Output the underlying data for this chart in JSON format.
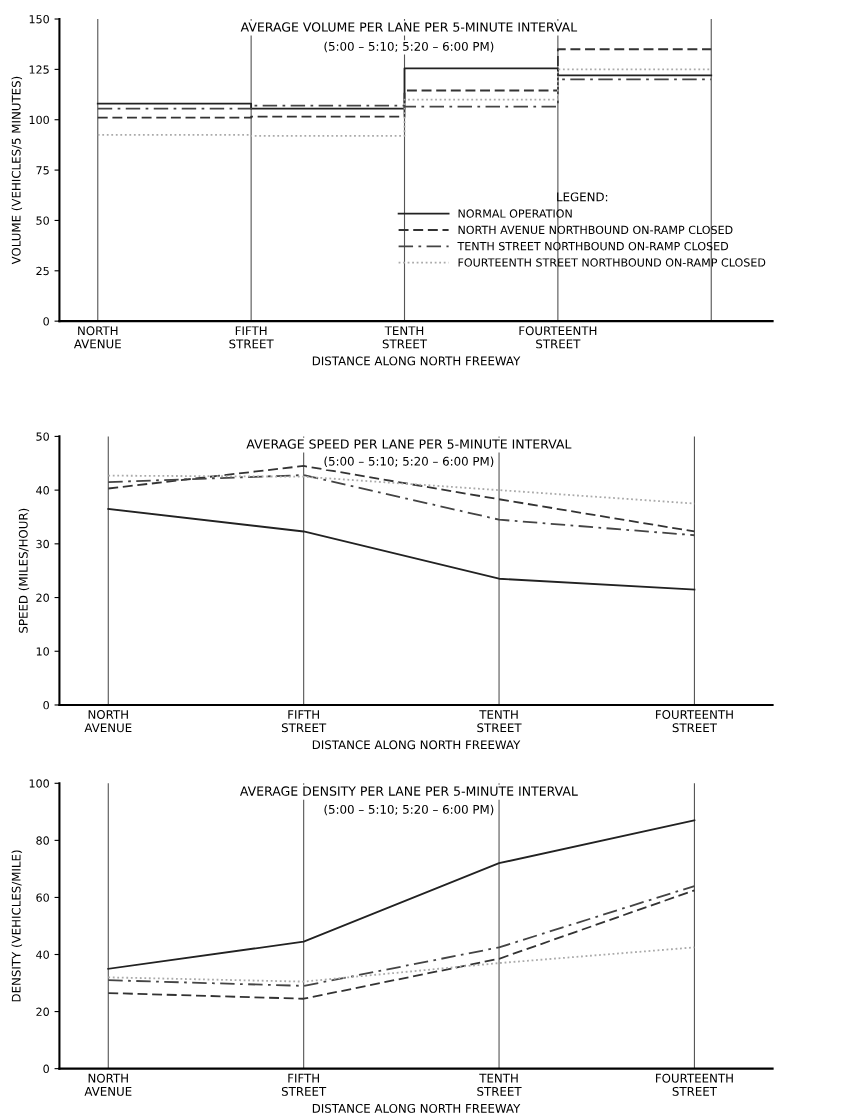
{
  "chart_data": [
    {
      "type": "step",
      "title": "AVERAGE VOLUME PER LANE PER 5-MINUTE INTERVAL",
      "subtitle": "(5:00 – 5:10; 5:20 – 6:00 PM)",
      "xlabel": "DISTANCE ALONG NORTH FREEWAY",
      "ylabel": "VOLUME (VEHICLES/5 MINUTES)",
      "legend_title": "LEGEND:",
      "legend": "center right",
      "categories": [
        "NORTH\nAVENUE",
        "FIFTH\nSTREET",
        "TENTH\nSTREET",
        "FOURTEENTH\nSTREET",
        null
      ],
      "ylim": [
        0,
        150
      ],
      "yticks": [
        0,
        25,
        50,
        75,
        100,
        125,
        150
      ],
      "grid": "x",
      "series": [
        {
          "name": "NORMAL OPERATION",
          "color": "#222222",
          "line_style": "solid",
          "values": [
            108,
            105.5,
            125.5,
            122,
            122
          ]
        },
        {
          "name": "NORTH AVENUE NORTHBOUND ON-RAMP CLOSED",
          "color": "#333333",
          "line_style": "dashed",
          "values": [
            101,
            101.5,
            114.5,
            135,
            135
          ]
        },
        {
          "name": "TENTH STREET NORTHBOUND ON-RAMP CLOSED",
          "color": "#444444",
          "line_style": "dashdot",
          "values": [
            105.5,
            107,
            106.5,
            120,
            120
          ]
        },
        {
          "name": "FOURTEENTH STREET NORTHBOUND ON-RAMP CLOSED",
          "color": "#aaaaaa",
          "line_style": "dotted",
          "values": [
            92.5,
            92,
            110,
            125,
            125
          ]
        }
      ]
    },
    {
      "type": "line",
      "title": "AVERAGE SPEED PER LANE PER 5-MINUTE INTERVAL",
      "subtitle": "(5:00 – 5:10; 5:20 – 6:00 PM)",
      "xlabel": "DISTANCE ALONG NORTH FREEWAY",
      "ylabel": "SPEED (MILES/HOUR)",
      "categories": [
        "NORTH\nAVENUE",
        "FIFTH\nSTREET",
        "TENTH\nSTREET",
        "FOURTEENTH\nSTREET"
      ],
      "ylim": [
        0,
        50
      ],
      "yticks": [
        0,
        10,
        20,
        30,
        40,
        50
      ],
      "grid": "x",
      "series": [
        {
          "color": "#222222",
          "line_style": "solid",
          "values": [
            36.5,
            32.3,
            23.5,
            21.5
          ]
        },
        {
          "color": "#333333",
          "line_style": "dashed",
          "values": [
            40.3,
            44.5,
            38.3,
            32.3
          ]
        },
        {
          "color": "#444444",
          "line_style": "dashdot",
          "values": [
            41.5,
            42.8,
            34.5,
            31.6
          ]
        },
        {
          "color": "#aaaaaa",
          "line_style": "dotted",
          "values": [
            42.7,
            42.5,
            40,
            37.5
          ]
        }
      ]
    },
    {
      "type": "line",
      "title": "AVERAGE DENSITY PER LANE PER 5-MINUTE INTERVAL",
      "subtitle": "(5:00 – 5:10; 5:20 – 6:00 PM)",
      "xlabel": "DISTANCE ALONG NORTH FREEWAY",
      "ylabel": "DENSITY (VEHICLES/MILE)",
      "categories": [
        "NORTH\nAVENUE",
        "FIFTH\nSTREET",
        "TENTH\nSTREET",
        "FOURTEENTH\nSTREET"
      ],
      "ylim": [
        0,
        100
      ],
      "yticks": [
        0,
        20,
        40,
        60,
        80,
        100
      ],
      "grid": "x",
      "series": [
        {
          "color": "#222222",
          "line_style": "solid",
          "values": [
            35,
            44.5,
            72,
            87
          ]
        },
        {
          "color": "#333333",
          "line_style": "dashed",
          "values": [
            26.5,
            24.5,
            38.5,
            62.5
          ]
        },
        {
          "color": "#444444",
          "line_style": "dashdot",
          "values": [
            31,
            29,
            42.5,
            64
          ]
        },
        {
          "color": "#aaaaaa",
          "line_style": "dotted",
          "values": [
            32,
            30.5,
            37,
            42.5
          ]
        }
      ]
    }
  ]
}
